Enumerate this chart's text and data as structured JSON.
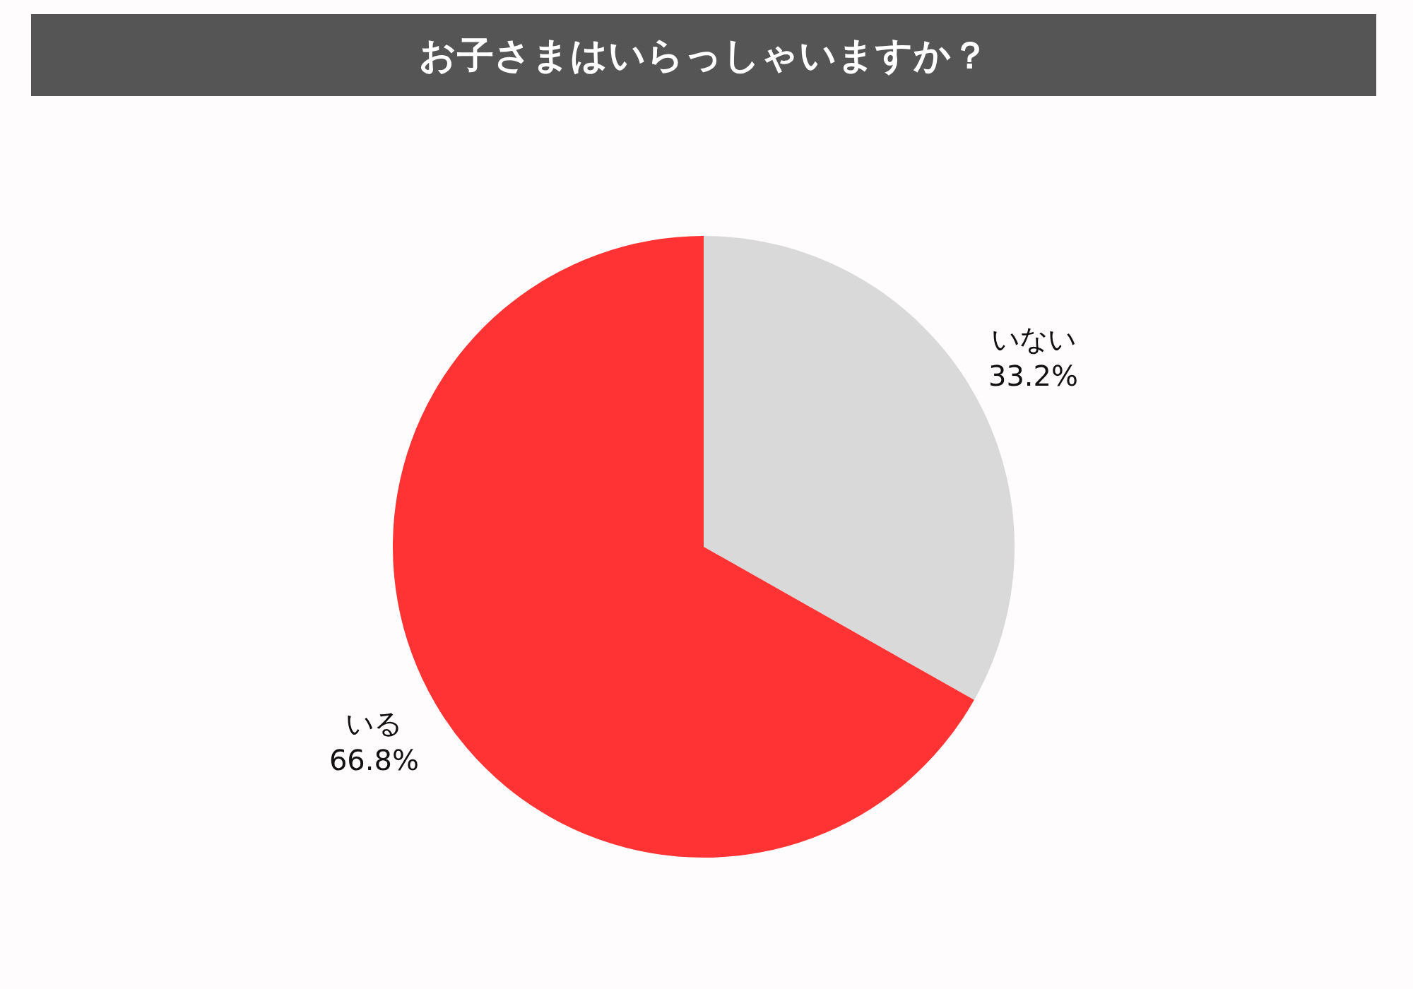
{
  "chart_data": {
    "type": "pie",
    "title": "お子さまはいらっしゃいますか？",
    "categories": [
      "いない",
      "いる"
    ],
    "values": [
      33.2,
      66.8
    ],
    "colors": [
      "#d9d9d9",
      "#ff3333"
    ],
    "value_labels": [
      "33.2%",
      "66.8%"
    ]
  }
}
